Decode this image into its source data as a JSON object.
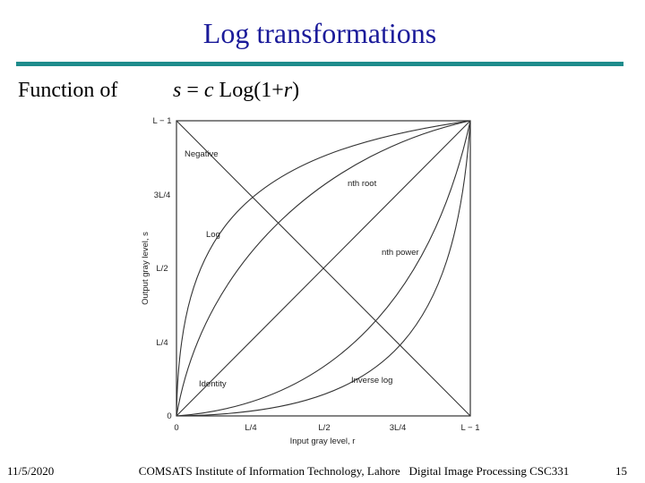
{
  "header": {
    "title": "Log transformations"
  },
  "body": {
    "lead": "Function of",
    "formula": [
      "s",
      " = ",
      "c",
      " Log(1+",
      "r",
      ")"
    ]
  },
  "figure": {
    "y_axis_title": "Output gray level, s",
    "x_axis_title": "Input gray level, r",
    "y_ticks": [
      "L − 1",
      "3L/4",
      "L/2",
      "L/4",
      "0"
    ],
    "x_ticks": [
      "0",
      "L/4",
      "L/2",
      "3L/4",
      "L − 1"
    ],
    "curves": [
      "Negative",
      "nth root",
      "Log",
      "nth power",
      "Identity",
      "Inverse log"
    ]
  },
  "footer": {
    "date": "11/5/2020",
    "center": "COMSATS Institute of Information Technology, Lahore   Digital Image Processing CSC331",
    "page": "15"
  }
}
